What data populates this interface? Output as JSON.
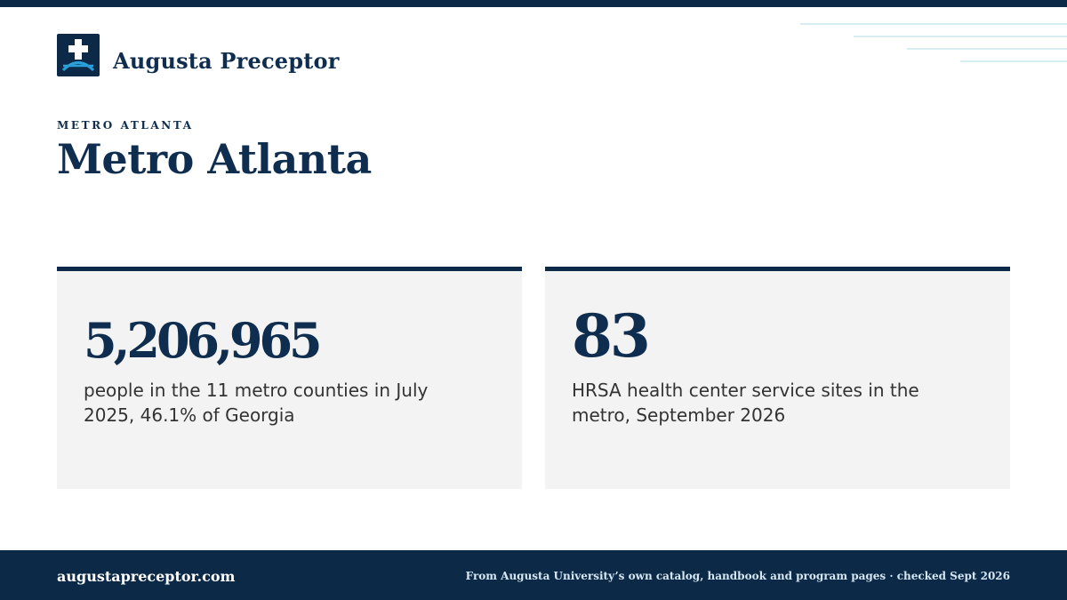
{
  "brand": {
    "name": "Augusta Preceptor",
    "logo_icon": "medical-cross-bridge-icon",
    "colors": {
      "navy": "#0c2a47",
      "accent_blue": "#2a9fd8",
      "card_bg": "#f3f3f3"
    }
  },
  "header": {
    "kicker": "METRO ATLANTA",
    "title": "Metro Atlanta"
  },
  "stats": [
    {
      "value": "5,206,965",
      "description": "people in the 11 metro counties in July 2025, 46.1% of Georgia"
    },
    {
      "value": "83",
      "description": "HRSA health center service sites in the metro, September 2026"
    }
  ],
  "footer": {
    "site": "augustapreceptor.com",
    "note": "From Augusta University’s own catalog, handbook and program pages · checked Sept 2026"
  }
}
